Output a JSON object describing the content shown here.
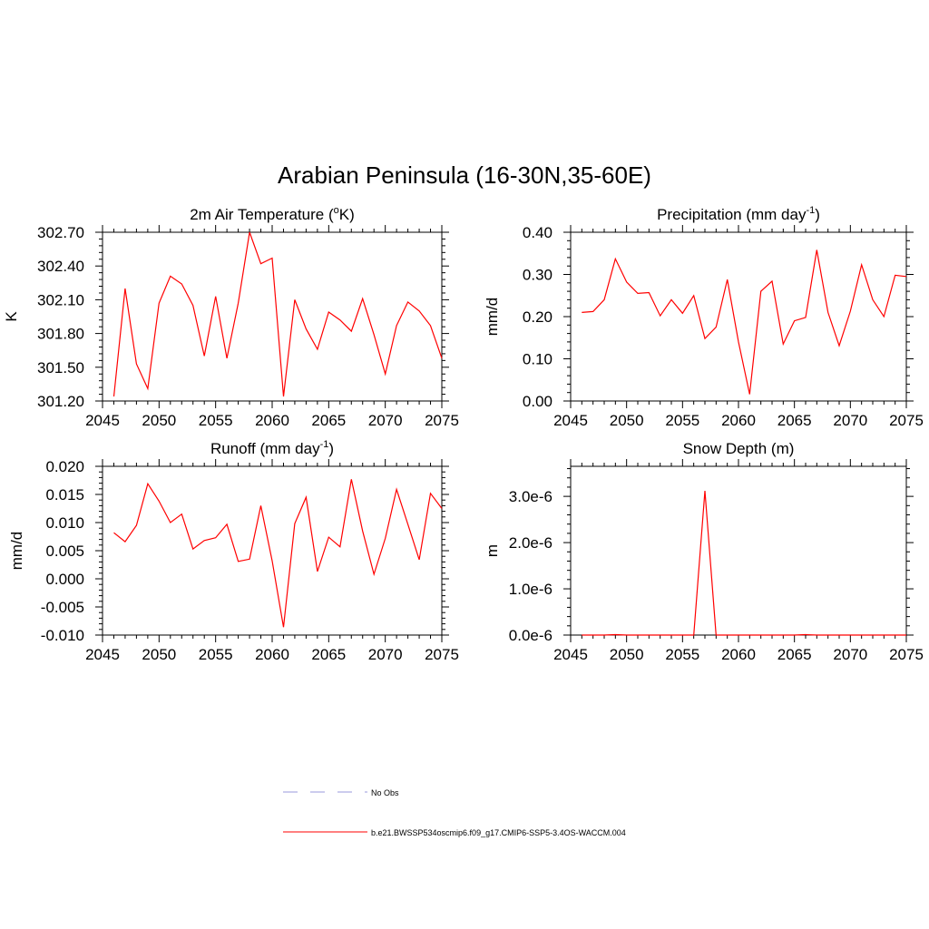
{
  "title": "Arabian Peninsula (16-30N,35-60E)",
  "chart_data": [
    {
      "id": "temp",
      "type": "line",
      "title": "2m Air Temperature (°K)",
      "title_parts": [
        "2m Air Temperature (",
        "o",
        "K)"
      ],
      "ylabel": "K",
      "xlim": [
        2045,
        2075
      ],
      "ylim": [
        301.2,
        302.7
      ],
      "xticks": [
        "2045",
        "2050",
        "2055",
        "2060",
        "2065",
        "2070",
        "2075"
      ],
      "yticks": [
        "301.20",
        "301.50",
        "301.80",
        "302.10",
        "302.40",
        "302.70"
      ],
      "series": [
        {
          "color": "#ff0000",
          "x": [
            2046,
            2047,
            2048,
            2049,
            2050,
            2051,
            2052,
            2053,
            2054,
            2055,
            2056,
            2057,
            2058,
            2059,
            2060,
            2061,
            2062,
            2063,
            2064,
            2065,
            2066,
            2067,
            2068,
            2069,
            2070,
            2071,
            2072,
            2073,
            2074,
            2075
          ],
          "y": [
            301.24,
            302.2,
            301.53,
            301.31,
            302.07,
            302.31,
            302.24,
            302.05,
            301.6,
            302.13,
            301.58,
            302.07,
            302.7,
            302.42,
            302.47,
            301.24,
            302.1,
            301.84,
            301.66,
            301.99,
            301.92,
            301.82,
            302.11,
            301.79,
            301.44,
            301.87,
            302.08,
            302.0,
            301.87,
            301.58
          ]
        }
      ]
    },
    {
      "id": "prec",
      "type": "line",
      "title": "Precipitation (mm day-1)",
      "title_parts": [
        "Precipitation (mm day",
        "-1",
        ")"
      ],
      "ylabel": "mm/d",
      "xlim": [
        2045,
        2075
      ],
      "ylim": [
        0.0,
        0.4
      ],
      "xticks": [
        "2045",
        "2050",
        "2055",
        "2060",
        "2065",
        "2070",
        "2075"
      ],
      "yticks": [
        "0.00",
        "0.10",
        "0.20",
        "0.30",
        "0.40"
      ],
      "series": [
        {
          "color": "#ff0000",
          "x": [
            2046,
            2047,
            2048,
            2049,
            2050,
            2051,
            2052,
            2053,
            2054,
            2055,
            2056,
            2057,
            2058,
            2059,
            2060,
            2061,
            2062,
            2063,
            2064,
            2065,
            2066,
            2067,
            2068,
            2069,
            2070,
            2071,
            2072,
            2073,
            2074,
            2075
          ],
          "y": [
            0.21,
            0.212,
            0.24,
            0.337,
            0.282,
            0.255,
            0.257,
            0.202,
            0.24,
            0.208,
            0.25,
            0.148,
            0.175,
            0.288,
            0.14,
            0.016,
            0.26,
            0.284,
            0.135,
            0.19,
            0.198,
            0.358,
            0.21,
            0.131,
            0.213,
            0.323,
            0.24,
            0.2,
            0.298,
            0.295
          ]
        }
      ]
    },
    {
      "id": "runoff",
      "type": "line",
      "title": "Runoff (mm day-1)",
      "title_parts": [
        "Runoff (mm day",
        "-1",
        ")"
      ],
      "ylabel": "mm/d",
      "xlim": [
        2045,
        2075
      ],
      "ylim": [
        -0.01,
        0.02
      ],
      "xticks": [
        "2045",
        "2050",
        "2055",
        "2060",
        "2065",
        "2070",
        "2075"
      ],
      "yticks": [
        "-0.010",
        "-0.005",
        "0.000",
        "0.005",
        "0.010",
        "0.015",
        "0.020"
      ],
      "series": [
        {
          "color": "#ff0000",
          "x": [
            2046,
            2047,
            2048,
            2049,
            2050,
            2051,
            2052,
            2053,
            2054,
            2055,
            2056,
            2057,
            2058,
            2059,
            2060,
            2061,
            2062,
            2063,
            2064,
            2065,
            2066,
            2067,
            2068,
            2069,
            2070,
            2071,
            2072,
            2073,
            2074,
            2075
          ],
          "y": [
            0.0082,
            0.0066,
            0.0095,
            0.0169,
            0.0138,
            0.01,
            0.0115,
            0.0053,
            0.0068,
            0.0073,
            0.0097,
            0.0031,
            0.0035,
            0.013,
            0.0032,
            -0.0086,
            0.0098,
            0.0145,
            0.0013,
            0.0074,
            0.0057,
            0.0177,
            0.0085,
            0.0008,
            0.0072,
            0.0159,
            0.0097,
            0.0034,
            0.0152,
            0.0125
          ]
        }
      ]
    },
    {
      "id": "snow",
      "type": "line",
      "title": "Snow Depth (m)",
      "title_parts": [
        "Snow Depth (m)",
        "",
        ""
      ],
      "ylabel": "m",
      "xlim": [
        2045,
        2075
      ],
      "ylim": [
        0.0,
        3.65e-06
      ],
      "xticks": [
        "2045",
        "2050",
        "2055",
        "2060",
        "2065",
        "2070",
        "2075"
      ],
      "ytick_values": [
        0.0,
        1e-06,
        2e-06,
        3e-06
      ],
      "yticks": [
        "0.0e-6",
        "1.0e-6",
        "2.0e-6",
        "3.0e-6"
      ],
      "series": [
        {
          "color": "#ff0000",
          "x": [
            2046,
            2047,
            2048,
            2049,
            2050,
            2051,
            2052,
            2053,
            2054,
            2055,
            2056,
            2057,
            2058,
            2059,
            2060,
            2061,
            2062,
            2063,
            2064,
            2065,
            2066,
            2067,
            2068,
            2069,
            2070,
            2071,
            2072,
            2073,
            2074,
            2075
          ],
          "y": [
            0,
            0,
            0,
            1e-08,
            0,
            0,
            0,
            0,
            0,
            0,
            0,
            3.12e-06,
            0,
            0,
            0,
            0,
            0,
            0,
            0,
            0,
            1e-08,
            0,
            0,
            0,
            0,
            0,
            0,
            0,
            0,
            0
          ]
        }
      ]
    }
  ],
  "legend": [
    {
      "label": "No Obs",
      "color": "#9999dd",
      "style": "dashed"
    },
    {
      "label": "b.e21.BWSSP534oscmip6.f09_g17.CMIP6-SSP5-3.4OS-WACCM.004",
      "color": "#ff0000",
      "style": "solid"
    }
  ]
}
